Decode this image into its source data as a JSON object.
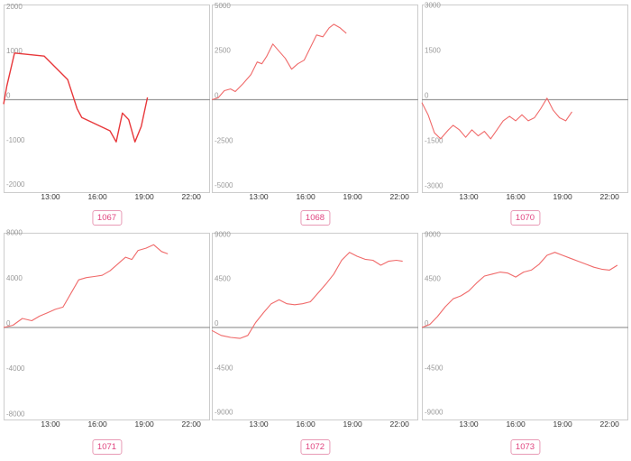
{
  "colors": {
    "line": "#f06a6a",
    "line_strong": "#e8383b",
    "badge_text": "#e0447f",
    "badge_border": "#e89ab5",
    "frame": "#cccccc",
    "zero_line": "#9a9a9a"
  },
  "chart_data": [
    {
      "type": "line",
      "label": "1067",
      "ylim": [
        -2100,
        2100
      ],
      "yticks": [
        2000,
        1000,
        0,
        -1000,
        -2000
      ],
      "x_ticks": [
        "13:00",
        "16:00",
        "19:00",
        "22:00"
      ],
      "points": [
        [
          10.0,
          -100
        ],
        [
          10.2,
          300
        ],
        [
          10.7,
          1050
        ],
        [
          12.6,
          980
        ],
        [
          14.1,
          450
        ],
        [
          14.7,
          -200
        ],
        [
          15.0,
          -400
        ],
        [
          16.8,
          -700
        ],
        [
          17.2,
          -950
        ],
        [
          17.6,
          -300
        ],
        [
          18.0,
          -450
        ],
        [
          18.4,
          -950
        ],
        [
          18.8,
          -600
        ],
        [
          19.2,
          50
        ]
      ]
    },
    {
      "type": "line",
      "label": "1068",
      "ylim": [
        -5200,
        5200
      ],
      "yticks": [
        5000,
        2500,
        0,
        -2500,
        -5000
      ],
      "x_ticks": [
        "13:00",
        "16:00",
        "19:00",
        "22:00"
      ],
      "points": [
        [
          10.0,
          0
        ],
        [
          10.4,
          100
        ],
        [
          10.8,
          500
        ],
        [
          11.2,
          600
        ],
        [
          11.5,
          450
        ],
        [
          12.0,
          900
        ],
        [
          12.5,
          1400
        ],
        [
          12.9,
          2100
        ],
        [
          13.2,
          2000
        ],
        [
          13.5,
          2400
        ],
        [
          13.9,
          3100
        ],
        [
          14.3,
          2700
        ],
        [
          14.7,
          2300
        ],
        [
          15.1,
          1700
        ],
        [
          15.5,
          2000
        ],
        [
          15.9,
          2200
        ],
        [
          16.3,
          2900
        ],
        [
          16.7,
          3600
        ],
        [
          17.1,
          3500
        ],
        [
          17.5,
          4000
        ],
        [
          17.8,
          4200
        ],
        [
          18.2,
          4000
        ],
        [
          18.6,
          3700
        ]
      ]
    },
    {
      "type": "line",
      "label": "1070",
      "ylim": [
        -3100,
        3100
      ],
      "yticks": [
        3000,
        1500,
        0,
        -1500,
        -3000
      ],
      "x_ticks": [
        "13:00",
        "16:00",
        "19:00",
        "22:00"
      ],
      "points": [
        [
          10.0,
          -100
        ],
        [
          10.4,
          -500
        ],
        [
          10.8,
          -1100
        ],
        [
          11.2,
          -1300
        ],
        [
          11.7,
          -1000
        ],
        [
          12.0,
          -850
        ],
        [
          12.4,
          -1000
        ],
        [
          12.8,
          -1250
        ],
        [
          13.2,
          -1000
        ],
        [
          13.6,
          -1200
        ],
        [
          14.0,
          -1050
        ],
        [
          14.4,
          -1300
        ],
        [
          14.8,
          -1000
        ],
        [
          15.2,
          -700
        ],
        [
          15.6,
          -550
        ],
        [
          16.0,
          -700
        ],
        [
          16.4,
          -500
        ],
        [
          16.8,
          -700
        ],
        [
          17.2,
          -600
        ],
        [
          17.6,
          -300
        ],
        [
          18.0,
          50
        ],
        [
          18.4,
          -350
        ],
        [
          18.8,
          -600
        ],
        [
          19.2,
          -700
        ],
        [
          19.6,
          -400
        ]
      ]
    },
    {
      "type": "line",
      "label": "1071",
      "ylim": [
        -8200,
        8200
      ],
      "yticks": [
        8000,
        4000,
        0,
        -4000,
        -8000
      ],
      "x_ticks": [
        "13:00",
        "16:00",
        "19:00",
        "22:00"
      ],
      "points": [
        [
          10.0,
          0
        ],
        [
          10.6,
          200
        ],
        [
          11.2,
          800
        ],
        [
          11.8,
          600
        ],
        [
          12.3,
          1000
        ],
        [
          12.8,
          1300
        ],
        [
          13.3,
          1600
        ],
        [
          13.8,
          1800
        ],
        [
          14.3,
          3000
        ],
        [
          14.8,
          4200
        ],
        [
          15.3,
          4400
        ],
        [
          15.8,
          4500
        ],
        [
          16.3,
          4600
        ],
        [
          16.8,
          5000
        ],
        [
          17.3,
          5600
        ],
        [
          17.8,
          6200
        ],
        [
          18.2,
          6000
        ],
        [
          18.6,
          6800
        ],
        [
          19.1,
          7000
        ],
        [
          19.6,
          7300
        ],
        [
          20.1,
          6700
        ],
        [
          20.5,
          6500
        ]
      ]
    },
    {
      "type": "line",
      "label": "1072",
      "ylim": [
        -9400,
        9400
      ],
      "yticks": [
        9000,
        4500,
        0,
        -4500,
        -9000
      ],
      "x_ticks": [
        "13:00",
        "16:00",
        "19:00",
        "22:00"
      ],
      "points": [
        [
          10.0,
          -300
        ],
        [
          10.6,
          -800
        ],
        [
          11.2,
          -1000
        ],
        [
          11.8,
          -1100
        ],
        [
          12.3,
          -800
        ],
        [
          12.8,
          500
        ],
        [
          13.3,
          1500
        ],
        [
          13.8,
          2400
        ],
        [
          14.3,
          2800
        ],
        [
          14.8,
          2400
        ],
        [
          15.3,
          2300
        ],
        [
          15.8,
          2400
        ],
        [
          16.3,
          2600
        ],
        [
          16.8,
          3500
        ],
        [
          17.3,
          4400
        ],
        [
          17.8,
          5400
        ],
        [
          18.3,
          6800
        ],
        [
          18.8,
          7600
        ],
        [
          19.3,
          7200
        ],
        [
          19.8,
          6900
        ],
        [
          20.3,
          6800
        ],
        [
          20.8,
          6300
        ],
        [
          21.3,
          6700
        ],
        [
          21.8,
          6800
        ],
        [
          22.2,
          6700
        ]
      ]
    },
    {
      "type": "line",
      "label": "1073",
      "ylim": [
        -9400,
        9400
      ],
      "yticks": [
        9000,
        4500,
        0,
        -4500,
        -9000
      ],
      "x_ticks": [
        "13:00",
        "16:00",
        "19:00",
        "22:00"
      ],
      "points": [
        [
          10.0,
          0
        ],
        [
          10.5,
          300
        ],
        [
          11.0,
          1100
        ],
        [
          11.5,
          2100
        ],
        [
          12.0,
          2900
        ],
        [
          12.5,
          3200
        ],
        [
          13.0,
          3700
        ],
        [
          13.5,
          4500
        ],
        [
          14.0,
          5200
        ],
        [
          14.5,
          5400
        ],
        [
          15.0,
          5600
        ],
        [
          15.5,
          5500
        ],
        [
          16.0,
          5100
        ],
        [
          16.5,
          5600
        ],
        [
          17.0,
          5800
        ],
        [
          17.5,
          6400
        ],
        [
          18.0,
          7300
        ],
        [
          18.5,
          7600
        ],
        [
          19.0,
          7300
        ],
        [
          19.5,
          7000
        ],
        [
          20.0,
          6700
        ],
        [
          20.5,
          6400
        ],
        [
          21.0,
          6100
        ],
        [
          21.5,
          5900
        ],
        [
          22.0,
          5800
        ],
        [
          22.5,
          6300
        ]
      ]
    }
  ]
}
